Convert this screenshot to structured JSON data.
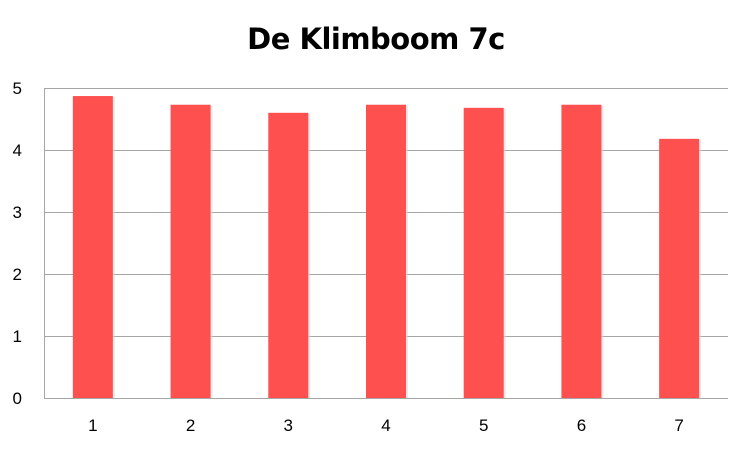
{
  "chart_data": {
    "type": "bar",
    "title": "De Klimboom 7c",
    "categories": [
      "1",
      "2",
      "3",
      "4",
      "5",
      "6",
      "7"
    ],
    "values": [
      4.87,
      4.73,
      4.6,
      4.73,
      4.68,
      4.73,
      4.18
    ],
    "xlabel": "",
    "ylabel": "",
    "ylim": [
      0,
      5
    ],
    "yticks": [
      "0",
      "1",
      "2",
      "3",
      "4",
      "5"
    ],
    "grid": true,
    "legend": "none",
    "bar_color": "#ff5050",
    "grid_color": "#a6a6a6"
  }
}
